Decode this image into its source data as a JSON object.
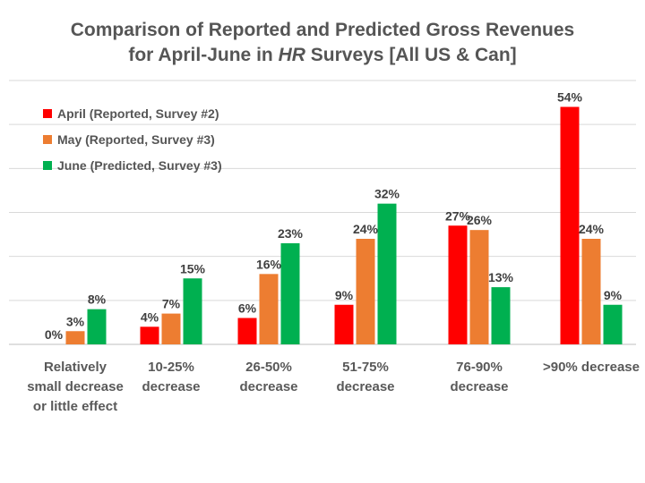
{
  "chart_data": {
    "type": "bar",
    "title_line1": "Comparison of Reported and Predicted Gross Revenues",
    "title_line2_pre": "for April-June in ",
    "title_line2_em": "HR",
    "title_line2_post": " Surveys [All US & Can]",
    "categories": [
      [
        "Relatively",
        "small decrease",
        "or little effect"
      ],
      [
        "10-25%",
        "decrease"
      ],
      [
        "26-50%",
        "decrease"
      ],
      [
        "51-75%",
        "decrease"
      ],
      [
        "76-90%",
        "decrease"
      ],
      [
        ">90% decrease"
      ]
    ],
    "series": [
      {
        "name": "April (Reported, Survey #2)",
        "color": "#ff0000",
        "values": [
          0,
          4,
          6,
          9,
          27,
          54
        ],
        "labels": [
          "0%",
          "4%",
          "6%",
          "9%",
          "27%",
          "54%"
        ]
      },
      {
        "name": "May (Reported, Survey #3)",
        "color": "#ed7d31",
        "values": [
          3,
          7,
          16,
          24,
          26,
          24
        ],
        "labels": [
          "3%",
          "7%",
          "16%",
          "24%",
          "26%",
          "24%"
        ]
      },
      {
        "name": "June (Predicted, Survey #3)",
        "color": "#00b050",
        "values": [
          8,
          15,
          23,
          32,
          13,
          9
        ],
        "labels": [
          "8%",
          "15%",
          "23%",
          "32%",
          "13%",
          "9%"
        ]
      }
    ],
    "ylim": [
      0,
      60
    ],
    "grid": true,
    "legend_position": "top-left",
    "xlabel": "",
    "ylabel": ""
  }
}
